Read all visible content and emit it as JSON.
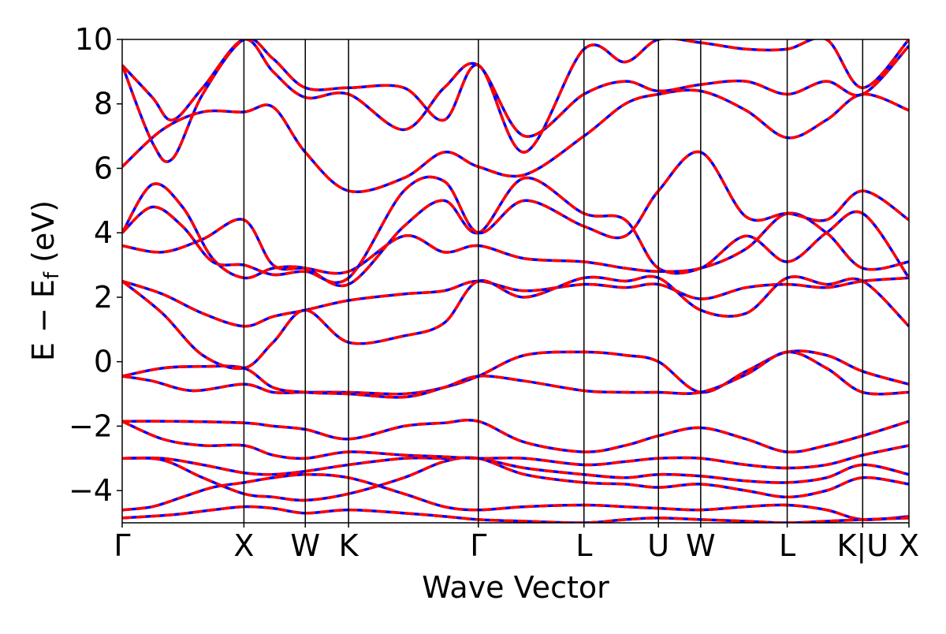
{
  "chart_data": {
    "type": "line",
    "xlabel": "Wave Vector",
    "ylabel": {
      "prefix": "E − E",
      "sub": "f",
      "suffix": " (eV)"
    },
    "ylim": [
      -5,
      10
    ],
    "yticks": [
      -4,
      -2,
      0,
      2,
      4,
      6,
      8,
      10
    ],
    "ytick_labels": [
      "−4",
      "−2",
      "0",
      "2",
      "4",
      "6",
      "8",
      "10"
    ],
    "xlim": [
      0,
      7.82
    ],
    "kpoints": [
      {
        "label": "Γ",
        "x": 0
      },
      {
        "label": "X",
        "x": 1.21
      },
      {
        "label": "W",
        "x": 1.82
      },
      {
        "label": "K",
        "x": 2.25
      },
      {
        "label": "Γ",
        "x": 3.54
      },
      {
        "label": "L",
        "x": 4.59
      },
      {
        "label": "U",
        "x": 5.33
      },
      {
        "label": "W",
        "x": 5.75
      },
      {
        "label": "L",
        "x": 6.61
      },
      {
        "label": "K|U",
        "x": 7.36
      },
      {
        "label": "X",
        "x": 7.82
      }
    ],
    "grid": false,
    "line_styles": {
      "reference": "#0000ff",
      "overlay": "#ff0000"
    },
    "bands": [
      [
        [
          0,
          -4.6
        ],
        [
          0.3,
          -4.5
        ],
        [
          0.6,
          -4.2
        ],
        [
          0.9,
          -3.9
        ],
        [
          1.21,
          -3.75
        ],
        [
          1.5,
          -3.6
        ],
        [
          1.82,
          -3.5
        ],
        [
          2.25,
          -3.6
        ],
        [
          2.8,
          -4.1
        ],
        [
          3.2,
          -4.5
        ],
        [
          3.54,
          -4.6
        ],
        [
          4.0,
          -4.5
        ],
        [
          4.59,
          -4.45
        ],
        [
          5.0,
          -4.5
        ],
        [
          5.33,
          -4.55
        ],
        [
          5.75,
          -4.6
        ],
        [
          6.2,
          -4.5
        ],
        [
          6.61,
          -4.45
        ],
        [
          7.0,
          -4.6
        ],
        [
          7.36,
          -4.9
        ],
        [
          7.82,
          -4.8
        ]
      ],
      [
        [
          0,
          -4.85
        ],
        [
          0.5,
          -4.75
        ],
        [
          0.9,
          -4.6
        ],
        [
          1.21,
          -4.5
        ],
        [
          1.5,
          -4.55
        ],
        [
          1.82,
          -4.7
        ],
        [
          2.25,
          -4.6
        ],
        [
          2.8,
          -4.7
        ],
        [
          3.2,
          -4.8
        ],
        [
          3.54,
          -4.9
        ],
        [
          4.0,
          -4.95
        ],
        [
          4.59,
          -5.0
        ],
        [
          5.0,
          -4.9
        ],
        [
          5.33,
          -4.85
        ],
        [
          5.75,
          -4.9
        ],
        [
          6.2,
          -4.95
        ],
        [
          6.61,
          -5.0
        ],
        [
          7.0,
          -4.95
        ],
        [
          7.36,
          -4.9
        ],
        [
          7.82,
          -4.85
        ]
      ],
      [
        [
          0,
          -3.0
        ],
        [
          0.4,
          -3.0
        ],
        [
          0.8,
          -3.2
        ],
        [
          1.21,
          -3.45
        ],
        [
          1.5,
          -3.5
        ],
        [
          1.82,
          -3.4
        ],
        [
          2.25,
          -3.2
        ],
        [
          2.8,
          -3.0
        ],
        [
          3.2,
          -3.0
        ],
        [
          3.54,
          -3.0
        ],
        [
          4.0,
          -3.3
        ],
        [
          4.59,
          -3.5
        ],
        [
          5.0,
          -3.6
        ],
        [
          5.33,
          -3.5
        ],
        [
          5.75,
          -3.55
        ],
        [
          6.2,
          -3.7
        ],
        [
          6.61,
          -3.75
        ],
        [
          7.0,
          -3.6
        ],
        [
          7.36,
          -3.2
        ],
        [
          7.82,
          -3.5
        ]
      ],
      [
        [
          0,
          -3.0
        ],
        [
          0.4,
          -3.05
        ],
        [
          0.8,
          -3.6
        ],
        [
          1.21,
          -4.1
        ],
        [
          1.5,
          -4.2
        ],
        [
          1.82,
          -4.3
        ],
        [
          2.25,
          -4.1
        ],
        [
          2.8,
          -3.6
        ],
        [
          3.2,
          -3.1
        ],
        [
          3.54,
          -3.0
        ],
        [
          4.0,
          -3.5
        ],
        [
          4.59,
          -3.75
        ],
        [
          5.0,
          -3.8
        ],
        [
          5.33,
          -3.9
        ],
        [
          5.75,
          -3.8
        ],
        [
          6.2,
          -4.0
        ],
        [
          6.61,
          -4.2
        ],
        [
          7.0,
          -4.0
        ],
        [
          7.36,
          -3.6
        ],
        [
          7.82,
          -3.8
        ]
      ],
      [
        [
          0,
          -1.85
        ],
        [
          0.5,
          -1.85
        ],
        [
          1.21,
          -1.9
        ],
        [
          1.5,
          -2.0
        ],
        [
          1.82,
          -2.1
        ],
        [
          2.25,
          -2.4
        ],
        [
          2.8,
          -2.0
        ],
        [
          3.2,
          -1.9
        ],
        [
          3.54,
          -1.85
        ],
        [
          4.0,
          -2.5
        ],
        [
          4.59,
          -2.8
        ],
        [
          5.0,
          -2.6
        ],
        [
          5.33,
          -2.3
        ],
        [
          5.75,
          -2.05
        ],
        [
          6.2,
          -2.4
        ],
        [
          6.61,
          -2.8
        ],
        [
          7.0,
          -2.6
        ],
        [
          7.36,
          -2.3
        ],
        [
          7.82,
          -1.85
        ]
      ],
      [
        [
          0,
          -1.85
        ],
        [
          0.4,
          -2.4
        ],
        [
          0.8,
          -2.6
        ],
        [
          1.21,
          -2.6
        ],
        [
          1.5,
          -2.9
        ],
        [
          1.82,
          -3.0
        ],
        [
          2.25,
          -2.8
        ],
        [
          2.8,
          -2.9
        ],
        [
          3.2,
          -2.95
        ],
        [
          3.54,
          -3.0
        ],
        [
          4.0,
          -3.0
        ],
        [
          4.59,
          -3.2
        ],
        [
          5.0,
          -3.1
        ],
        [
          5.33,
          -3.0
        ],
        [
          5.75,
          -3.0
        ],
        [
          6.2,
          -3.2
        ],
        [
          6.61,
          -3.3
        ],
        [
          7.0,
          -3.2
        ],
        [
          7.36,
          -2.9
        ],
        [
          7.82,
          -2.6
        ]
      ],
      [
        [
          0,
          -0.45
        ],
        [
          0.3,
          -0.6
        ],
        [
          0.7,
          -0.9
        ],
        [
          1.21,
          -0.7
        ],
        [
          1.5,
          -0.95
        ],
        [
          1.82,
          -0.95
        ],
        [
          2.25,
          -0.95
        ],
        [
          2.8,
          -1.0
        ],
        [
          3.2,
          -0.8
        ],
        [
          3.54,
          -0.45
        ],
        [
          4.0,
          0.2
        ],
        [
          4.59,
          0.3
        ],
        [
          5.0,
          0.2
        ],
        [
          5.33,
          0.0
        ],
        [
          5.75,
          -0.95
        ],
        [
          6.2,
          -0.3
        ],
        [
          6.61,
          0.3
        ],
        [
          7.0,
          0.2
        ],
        [
          7.36,
          -0.3
        ],
        [
          7.82,
          -0.7
        ]
      ],
      [
        [
          0,
          -0.45
        ],
        [
          0.4,
          -0.2
        ],
        [
          0.8,
          -0.15
        ],
        [
          1.21,
          -0.2
        ],
        [
          1.5,
          -0.8
        ],
        [
          1.82,
          -0.95
        ],
        [
          2.25,
          -1.0
        ],
        [
          2.8,
          -1.1
        ],
        [
          3.2,
          -0.8
        ],
        [
          3.54,
          -0.45
        ],
        [
          4.0,
          -0.6
        ],
        [
          4.59,
          -0.9
        ],
        [
          5.0,
          -0.95
        ],
        [
          5.33,
          -0.95
        ],
        [
          5.75,
          -0.95
        ],
        [
          6.2,
          -0.4
        ],
        [
          6.61,
          0.3
        ],
        [
          7.0,
          -0.2
        ],
        [
          7.36,
          -0.95
        ],
        [
          7.82,
          -0.95
        ]
      ],
      [
        [
          0,
          2.5
        ],
        [
          0.4,
          2.1
        ],
        [
          0.8,
          1.5
        ],
        [
          1.21,
          1.1
        ],
        [
          1.5,
          1.4
        ],
        [
          1.82,
          1.6
        ],
        [
          2.25,
          1.9
        ],
        [
          2.8,
          2.1
        ],
        [
          3.2,
          2.2
        ],
        [
          3.54,
          2.5
        ],
        [
          4.0,
          2.2
        ],
        [
          4.59,
          2.4
        ],
        [
          5.0,
          2.3
        ],
        [
          5.33,
          2.4
        ],
        [
          5.75,
          1.95
        ],
        [
          6.2,
          2.3
        ],
        [
          6.61,
          2.4
        ],
        [
          7.0,
          2.3
        ],
        [
          7.36,
          2.5
        ],
        [
          7.82,
          2.6
        ]
      ],
      [
        [
          0,
          2.5
        ],
        [
          0.4,
          1.5
        ],
        [
          0.8,
          0.2
        ],
        [
          1.21,
          -0.2
        ],
        [
          1.5,
          0.6
        ],
        [
          1.82,
          1.6
        ],
        [
          2.25,
          0.6
        ],
        [
          2.8,
          0.8
        ],
        [
          3.2,
          1.2
        ],
        [
          3.54,
          2.5
        ],
        [
          4.0,
          2.0
        ],
        [
          4.59,
          2.6
        ],
        [
          5.0,
          2.5
        ],
        [
          5.33,
          2.6
        ],
        [
          5.75,
          1.6
        ],
        [
          6.2,
          1.5
        ],
        [
          6.61,
          2.6
        ],
        [
          7.0,
          2.4
        ],
        [
          7.36,
          2.5
        ],
        [
          7.82,
          1.1
        ]
      ],
      [
        [
          0,
          3.6
        ],
        [
          0.4,
          3.4
        ],
        [
          0.8,
          3.8
        ],
        [
          1.21,
          4.4
        ],
        [
          1.5,
          3.0
        ],
        [
          1.82,
          2.9
        ],
        [
          2.25,
          2.8
        ],
        [
          2.8,
          3.9
        ],
        [
          3.2,
          3.4
        ],
        [
          3.54,
          3.6
        ],
        [
          4.0,
          3.2
        ],
        [
          4.59,
          3.1
        ],
        [
          5.0,
          2.9
        ],
        [
          5.33,
          2.8
        ],
        [
          5.75,
          2.9
        ],
        [
          6.2,
          3.5
        ],
        [
          6.61,
          4.6
        ],
        [
          7.0,
          4.0
        ],
        [
          7.36,
          2.9
        ],
        [
          7.82,
          3.1
        ]
      ],
      [
        [
          0,
          4.0
        ],
        [
          0.3,
          5.5
        ],
        [
          0.6,
          4.8
        ],
        [
          0.9,
          3.2
        ],
        [
          1.21,
          2.6
        ],
        [
          1.5,
          2.9
        ],
        [
          1.82,
          2.9
        ],
        [
          2.25,
          2.4
        ],
        [
          2.8,
          4.2
        ],
        [
          3.2,
          5.0
        ],
        [
          3.54,
          4.0
        ],
        [
          4.0,
          5.7
        ],
        [
          4.59,
          4.6
        ],
        [
          5.0,
          4.4
        ],
        [
          5.33,
          2.9
        ],
        [
          5.75,
          2.9
        ],
        [
          6.2,
          3.9
        ],
        [
          6.61,
          3.1
        ],
        [
          7.0,
          4.0
        ],
        [
          7.36,
          4.6
        ],
        [
          7.82,
          2.6
        ]
      ],
      [
        [
          0,
          4.0
        ],
        [
          0.3,
          4.8
        ],
        [
          0.6,
          4.2
        ],
        [
          0.9,
          3.1
        ],
        [
          1.21,
          3.0
        ],
        [
          1.5,
          2.7
        ],
        [
          1.82,
          2.8
        ],
        [
          2.25,
          2.6
        ],
        [
          2.8,
          5.3
        ],
        [
          3.2,
          5.6
        ],
        [
          3.54,
          4.0
        ],
        [
          4.0,
          5.0
        ],
        [
          4.59,
          4.2
        ],
        [
          5.0,
          3.9
        ],
        [
          5.33,
          5.3
        ],
        [
          5.75,
          6.5
        ],
        [
          6.2,
          4.5
        ],
        [
          6.61,
          4.6
        ],
        [
          7.0,
          4.4
        ],
        [
          7.36,
          5.3
        ],
        [
          7.82,
          4.4
        ]
      ],
      [
        [
          0,
          6.05
        ],
        [
          0.4,
          7.2
        ],
        [
          0.8,
          7.75
        ],
        [
          1.21,
          7.75
        ],
        [
          1.5,
          7.9
        ],
        [
          1.82,
          6.5
        ],
        [
          2.25,
          5.3
        ],
        [
          2.8,
          5.7
        ],
        [
          3.2,
          6.5
        ],
        [
          3.54,
          6.05
        ],
        [
          4.0,
          5.8
        ],
        [
          4.59,
          7.0
        ],
        [
          5.0,
          8.0
        ],
        [
          5.33,
          8.3
        ],
        [
          5.75,
          8.4
        ],
        [
          6.2,
          7.8
        ],
        [
          6.61,
          6.95
        ],
        [
          7.0,
          7.5
        ],
        [
          7.36,
          8.3
        ],
        [
          7.82,
          7.8
        ]
      ],
      [
        [
          0,
          9.2
        ],
        [
          0.3,
          8.2
        ],
        [
          0.5,
          7.5
        ],
        [
          0.8,
          8.5
        ],
        [
          1.21,
          10.0
        ],
        [
          1.5,
          9.0
        ],
        [
          1.82,
          8.2
        ],
        [
          2.25,
          8.3
        ],
        [
          2.8,
          7.2
        ],
        [
          3.2,
          8.5
        ],
        [
          3.54,
          9.2
        ],
        [
          4.0,
          7.0
        ],
        [
          4.59,
          8.3
        ],
        [
          5.0,
          8.7
        ],
        [
          5.33,
          8.4
        ],
        [
          5.75,
          8.6
        ],
        [
          6.2,
          8.7
        ],
        [
          6.61,
          8.3
        ],
        [
          7.0,
          8.7
        ],
        [
          7.36,
          8.3
        ],
        [
          7.82,
          9.8
        ]
      ],
      [
        [
          0,
          9.2
        ],
        [
          0.3,
          6.8
        ],
        [
          0.5,
          6.3
        ],
        [
          0.8,
          8.3
        ],
        [
          1.21,
          10.0
        ],
        [
          1.5,
          9.4
        ],
        [
          1.82,
          8.5
        ],
        [
          2.25,
          8.5
        ],
        [
          2.8,
          8.5
        ],
        [
          3.2,
          7.5
        ],
        [
          3.54,
          9.2
        ],
        [
          4.0,
          6.5
        ],
        [
          4.59,
          9.7
        ],
        [
          5.0,
          9.3
        ],
        [
          5.33,
          10.0
        ],
        [
          5.75,
          9.9
        ],
        [
          6.2,
          9.7
        ],
        [
          6.61,
          9.7
        ],
        [
          7.0,
          10.0
        ],
        [
          7.36,
          8.5
        ],
        [
          7.82,
          10.0
        ]
      ]
    ]
  }
}
